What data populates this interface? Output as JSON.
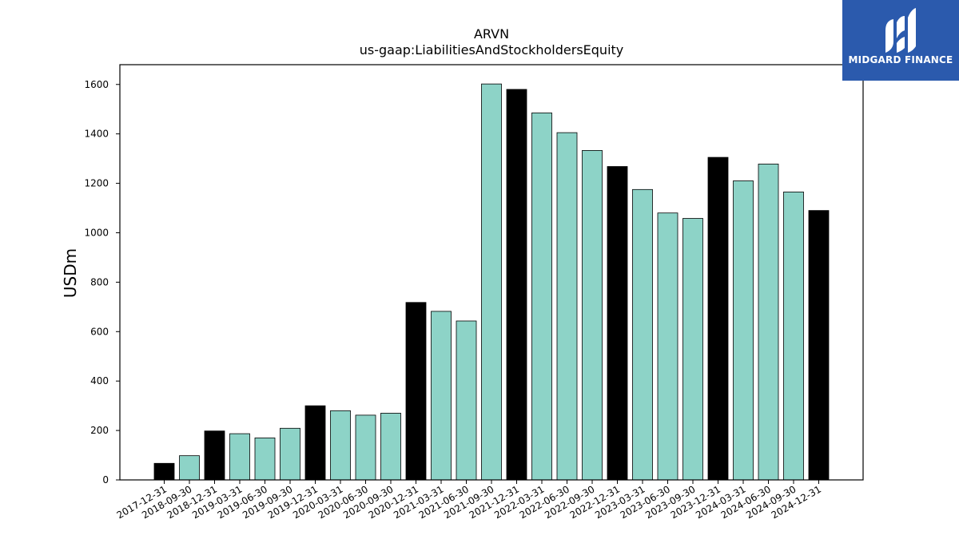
{
  "chart_data": {
    "type": "bar",
    "title": "ARVN",
    "subtitle": "us-gaap:LiabilitiesAndStockholdersEquity",
    "xlabel": "",
    "ylabel": "USDm",
    "ylim": [
      0,
      1680
    ],
    "yticks": [
      0,
      200,
      400,
      600,
      800,
      1000,
      1200,
      1400,
      1600
    ],
    "grid": false,
    "categories": [
      "2017-12-31",
      "2018-09-30",
      "2018-12-31",
      "2019-03-31",
      "2019-06-30",
      "2019-09-30",
      "2019-12-31",
      "2020-03-31",
      "2020-06-30",
      "2020-09-30",
      "2020-12-31",
      "2021-03-31",
      "2021-06-30",
      "2021-09-30",
      "2021-12-31",
      "2022-03-31",
      "2022-06-30",
      "2022-09-30",
      "2022-12-31",
      "2023-03-31",
      "2023-06-30",
      "2023-09-30",
      "2023-12-31",
      "2024-03-31",
      "2024-06-30",
      "2024-09-30",
      "2024-12-31"
    ],
    "values": [
      67,
      98,
      198,
      187,
      170,
      209,
      300,
      280,
      262,
      270,
      718,
      682,
      643,
      1602,
      1580,
      1485,
      1405,
      1333,
      1268,
      1175,
      1080,
      1058,
      1305,
      1210,
      1278,
      1165,
      1090
    ],
    "bar_colors": [
      "#000000",
      "#8dd3c7",
      "#000000",
      "#8dd3c7",
      "#8dd3c7",
      "#8dd3c7",
      "#000000",
      "#8dd3c7",
      "#8dd3c7",
      "#8dd3c7",
      "#000000",
      "#8dd3c7",
      "#8dd3c7",
      "#8dd3c7",
      "#000000",
      "#8dd3c7",
      "#8dd3c7",
      "#8dd3c7",
      "#000000",
      "#8dd3c7",
      "#8dd3c7",
      "#8dd3c7",
      "#000000",
      "#8dd3c7",
      "#8dd3c7",
      "#8dd3c7",
      "#000000"
    ]
  },
  "logo": {
    "text": "MIDGARD FINANCE",
    "background": "#2b5aad"
  }
}
